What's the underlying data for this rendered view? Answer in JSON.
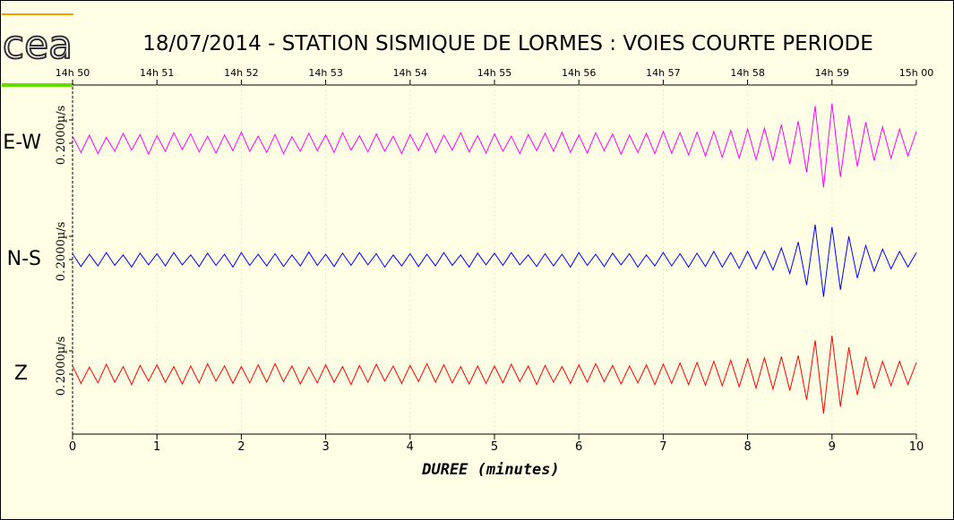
{
  "chart_data": {
    "type": "seismogram",
    "logo": "cea",
    "title": "18/07/2014  -  STATION SISMIQUE DE LORMES : VOIES COURTE PERIODE",
    "xlabel": "DUREE (minutes)",
    "xlim": [
      0,
      10
    ],
    "xticks": [
      0,
      1,
      2,
      3,
      4,
      5,
      6,
      7,
      8,
      9,
      10
    ],
    "top_xticks": [
      {
        "value": 0,
        "label": "14h 50"
      },
      {
        "value": 1,
        "label": "14h 51"
      },
      {
        "value": 2,
        "label": "14h 52"
      },
      {
        "value": 3,
        "label": "14h 53"
      },
      {
        "value": 4,
        "label": "14h 54"
      },
      {
        "value": 5,
        "label": "14h 55"
      },
      {
        "value": 6,
        "label": "14h 56"
      },
      {
        "value": 7,
        "label": "14h 57"
      },
      {
        "value": 8,
        "label": "14h 58"
      },
      {
        "value": 9,
        "label": "14h 59"
      },
      {
        "value": 10,
        "label": "15h 00"
      }
    ],
    "ylim": [
      -5000,
      5000
    ],
    "yticks": [
      {
        "value": 0,
        "label": "0."
      },
      {
        "value": 2000,
        "label": "2000µ/s"
      }
    ],
    "grid": true,
    "x": [
      0,
      0.1,
      0.2,
      0.3,
      0.4,
      0.5,
      0.6,
      0.7,
      0.8,
      0.9,
      1,
      1.1,
      1.2,
      1.3,
      1.4,
      1.5,
      1.6,
      1.7,
      1.8,
      1.9,
      2,
      2.1,
      2.2,
      2.3,
      2.4,
      2.5,
      2.6,
      2.7,
      2.8,
      2.9,
      3,
      3.1,
      3.2,
      3.3,
      3.4,
      3.5,
      3.6,
      3.7,
      3.8,
      3.9,
      4,
      4.1,
      4.2,
      4.3,
      4.4,
      4.5,
      4.6,
      4.7,
      4.8,
      4.9,
      5,
      5.1,
      5.2,
      5.3,
      5.4,
      5.5,
      5.6,
      5.7,
      5.8,
      5.9,
      6,
      6.1,
      6.2,
      6.3,
      6.4,
      6.5,
      6.6,
      6.7,
      6.8,
      6.9,
      7,
      7.1,
      7.2,
      7.3,
      7.4,
      7.5,
      7.6,
      7.7,
      7.8,
      7.9,
      8,
      8.1,
      8.2,
      8.3,
      8.4,
      8.5,
      8.6,
      8.7,
      8.8,
      8.9,
      9,
      9.1,
      9.2,
      9.3,
      9.4,
      9.5,
      9.6,
      9.7,
      9.8,
      9.9,
      10
    ],
    "series": [
      {
        "name": "E-W",
        "color": "#ff00ff",
        "values": [
          600,
          -800,
          700,
          -900,
          500,
          -700,
          850,
          -600,
          750,
          -950,
          650,
          -700,
          900,
          -550,
          800,
          -750,
          600,
          -850,
          700,
          -650,
          950,
          -700,
          600,
          -800,
          750,
          -900,
          550,
          -700,
          850,
          -650,
          700,
          -800,
          900,
          -600,
          650,
          -750,
          800,
          -700,
          600,
          -900,
          750,
          -650,
          850,
          -800,
          700,
          -600,
          900,
          -750,
          650,
          -850,
          800,
          -700,
          600,
          -900,
          750,
          -650,
          850,
          -700,
          950,
          -800,
          700,
          -850,
          900,
          -650,
          800,
          -950,
          700,
          -800,
          850,
          -900,
          1000,
          -850,
          900,
          -1000,
          950,
          -1100,
          1000,
          -1200,
          1100,
          -1300,
          1200,
          -1400,
          1300,
          -1500,
          1600,
          -1800,
          1900,
          -2500,
          3200,
          -3800,
          3400,
          -2900,
          2400,
          -2000,
          1800,
          -1500,
          1400,
          -1300,
          1200,
          -1100,
          1000
        ]
      },
      {
        "name": "N-S",
        "color": "#0000ff",
        "values": [
          500,
          -600,
          450,
          -550,
          600,
          -500,
          400,
          -650,
          550,
          -450,
          500,
          -550,
          600,
          -450,
          400,
          -600,
          550,
          -500,
          450,
          -650,
          600,
          -500,
          450,
          -550,
          500,
          -600,
          400,
          -550,
          650,
          -500,
          450,
          -600,
          550,
          -500,
          600,
          -450,
          500,
          -650,
          400,
          -550,
          500,
          -600,
          450,
          -550,
          600,
          -500,
          400,
          -650,
          550,
          -450,
          550,
          -500,
          600,
          -450,
          400,
          -600,
          500,
          -550,
          450,
          -650,
          600,
          -500,
          450,
          -600,
          550,
          -450,
          500,
          -650,
          400,
          -550,
          600,
          -550,
          500,
          -650,
          550,
          -600,
          700,
          -650,
          600,
          -750,
          700,
          -800,
          750,
          -900,
          1000,
          -1200,
          1500,
          -2200,
          3000,
          -3200,
          2800,
          -2600,
          2000,
          -1600,
          1200,
          -1000,
          900,
          -800,
          700,
          -650,
          600
        ]
      },
      {
        "name": "Z",
        "color": "#ff0000",
        "values": [
          700,
          -800,
          600,
          -750,
          850,
          -700,
          650,
          -900,
          750,
          -600,
          800,
          -700,
          650,
          -850,
          700,
          -750,
          900,
          -600,
          700,
          -800,
          650,
          -750,
          800,
          -700,
          900,
          -650,
          700,
          -850,
          600,
          -750,
          800,
          -700,
          650,
          -900,
          750,
          -700,
          850,
          -600,
          700,
          -800,
          750,
          -650,
          900,
          -700,
          800,
          -750,
          650,
          -850,
          700,
          -800,
          700,
          -750,
          850,
          -650,
          700,
          -900,
          750,
          -700,
          650,
          -800,
          800,
          -700,
          900,
          -650,
          750,
          -850,
          700,
          -750,
          800,
          -900,
          850,
          -800,
          950,
          -900,
          1000,
          -950,
          1100,
          -1000,
          1200,
          -1100,
          1300,
          -1200,
          1400,
          -1300,
          1500,
          -1400,
          1600,
          -2200,
          2900,
          -3400,
          3300,
          -2800,
          2300,
          -1800,
          1500,
          -1200,
          1100,
          -1000,
          1100,
          -900,
          1000
        ]
      }
    ]
  }
}
